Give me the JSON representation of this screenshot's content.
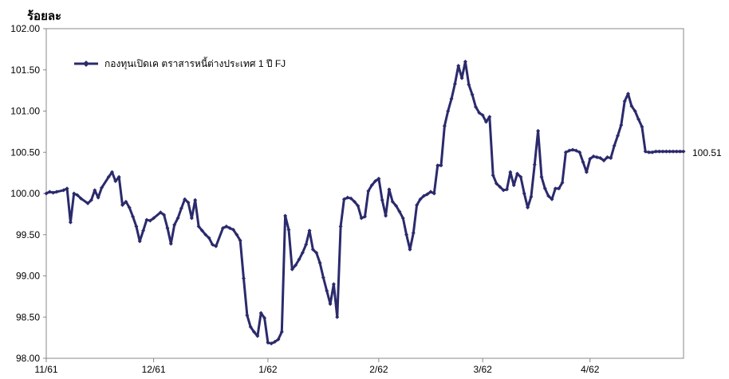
{
  "chart_data": {
    "type": "line",
    "title": "",
    "ylabel": "ร้อยละ",
    "xlabel": "",
    "ylim": [
      98.0,
      102.0
    ],
    "yticks": [
      "102.00",
      "101.50",
      "101.00",
      "100.50",
      "100.00",
      "99.50",
      "99.00",
      "98.50",
      "98.00"
    ],
    "ytick_values": [
      102.0,
      101.5,
      101.0,
      100.5,
      100.0,
      99.5,
      99.0,
      98.5,
      98.0
    ],
    "xlim": [
      0,
      184
    ],
    "xticks": [
      "11/61",
      "12/61",
      "1/62",
      "2/62",
      "3/62",
      "4/62"
    ],
    "xtick_values": [
      0,
      31,
      64,
      96,
      126,
      157
    ],
    "legend": {
      "placement": "top-left",
      "entries": [
        "กองทุนเปิดเค ตราสารหนี้ต่างประเทศ 1 ปี FJ"
      ]
    },
    "end_label": "100.51",
    "series_color": "#2b2a6c",
    "grid": false,
    "series": [
      {
        "name": "กองทุนเปิดเค ตราสารหนี้ต่างประเทศ 1 ปี FJ",
        "x": [
          0,
          1,
          2,
          3,
          5,
          6,
          7,
          8,
          9,
          10,
          12,
          13,
          14,
          15,
          16,
          18,
          19,
          20,
          21,
          22,
          23,
          24,
          25,
          26,
          27,
          28,
          29,
          30,
          31,
          33,
          34,
          35,
          36,
          37,
          38,
          39,
          40,
          41,
          42,
          43,
          44,
          45,
          46,
          47,
          48,
          49,
          51,
          52,
          53,
          54,
          55,
          56,
          57,
          58,
          59,
          60,
          61,
          62,
          63,
          64,
          65,
          66,
          67,
          68,
          69,
          70,
          71,
          72,
          73,
          74,
          75,
          76,
          77,
          78,
          79,
          80,
          81,
          82,
          83,
          84,
          85,
          86,
          87,
          88,
          89,
          90,
          91,
          92,
          93,
          94,
          95,
          96,
          97,
          98,
          99,
          100,
          101,
          102,
          103,
          104,
          105,
          106,
          107,
          108,
          109,
          110,
          111,
          112,
          113,
          114,
          115,
          116,
          117,
          118,
          119,
          120,
          121,
          122,
          123,
          124,
          125,
          126,
          127,
          128,
          129,
          130,
          131,
          132,
          133,
          134,
          135,
          136,
          137,
          138,
          139,
          140,
          141,
          142,
          143,
          144,
          145,
          146,
          147,
          148,
          149,
          150,
          151,
          152,
          153,
          154,
          155,
          156,
          157,
          158,
          159,
          160,
          161,
          162,
          163,
          164,
          165,
          166,
          167,
          168,
          169,
          170,
          171,
          172,
          173,
          174,
          175,
          176,
          177,
          178,
          179,
          180,
          181,
          182,
          183,
          184
        ],
        "values": [
          100.0,
          100.02,
          100.01,
          100.02,
          100.04,
          100.06,
          99.65,
          100.0,
          99.98,
          99.94,
          99.88,
          99.92,
          100.04,
          99.95,
          100.07,
          100.2,
          100.26,
          100.15,
          100.2,
          99.86,
          99.9,
          99.83,
          99.72,
          99.6,
          99.42,
          99.55,
          99.68,
          99.67,
          99.7,
          99.77,
          99.74,
          99.58,
          99.39,
          99.62,
          99.7,
          99.82,
          99.93,
          99.89,
          99.7,
          99.92,
          99.6,
          99.55,
          99.5,
          99.46,
          99.38,
          99.36,
          99.58,
          99.6,
          99.58,
          99.56,
          99.5,
          99.43,
          98.97,
          98.52,
          98.38,
          98.32,
          98.27,
          98.55,
          98.49,
          98.19,
          98.18,
          98.2,
          98.23,
          98.32,
          99.73,
          99.56,
          99.08,
          99.13,
          99.2,
          99.28,
          99.38,
          99.55,
          99.32,
          99.28,
          99.16,
          98.98,
          98.82,
          98.66,
          98.9,
          98.5,
          99.6,
          99.93,
          99.95,
          99.94,
          99.9,
          99.85,
          99.7,
          99.72,
          100.03,
          100.1,
          100.15,
          100.18,
          99.92,
          99.73,
          100.05,
          99.9,
          99.85,
          99.78,
          99.7,
          99.5,
          99.32,
          99.52,
          99.86,
          99.93,
          99.97,
          99.99,
          100.02,
          100.0,
          100.34,
          100.34,
          100.82,
          101.0,
          101.15,
          101.33,
          101.55,
          101.4,
          101.6,
          101.32,
          101.2,
          101.05,
          100.98,
          100.95,
          100.87,
          100.93,
          100.22,
          100.12,
          100.08,
          100.04,
          100.05,
          100.26,
          100.1,
          100.24,
          100.2,
          100.0,
          99.83,
          99.96,
          100.35,
          100.76,
          100.2,
          100.06,
          99.97,
          99.93,
          100.06,
          100.06,
          100.13,
          100.5,
          100.52,
          100.53,
          100.52,
          100.5,
          100.38,
          100.26,
          100.42,
          100.45,
          100.44,
          100.43,
          100.4,
          100.44,
          100.43,
          100.58,
          100.7,
          100.83,
          101.12,
          101.21,
          101.06,
          101.0,
          100.9,
          100.81,
          100.51,
          100.5,
          100.5,
          100.51,
          100.51,
          100.51,
          100.51,
          100.51,
          100.51,
          100.51,
          100.51,
          100.51
        ]
      }
    ]
  }
}
